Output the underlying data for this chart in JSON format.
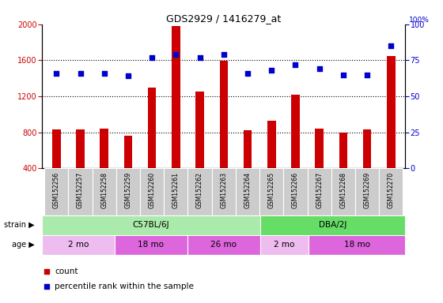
{
  "title": "GDS2929 / 1416279_at",
  "samples": [
    "GSM152256",
    "GSM152257",
    "GSM152258",
    "GSM152259",
    "GSM152260",
    "GSM152261",
    "GSM152262",
    "GSM152263",
    "GSM152264",
    "GSM152265",
    "GSM152266",
    "GSM152267",
    "GSM152268",
    "GSM152269",
    "GSM152270"
  ],
  "counts": [
    830,
    830,
    840,
    760,
    1300,
    1980,
    1250,
    1590,
    820,
    930,
    1220,
    840,
    800,
    830,
    1650
  ],
  "percentile_ranks": [
    66,
    66,
    66,
    64,
    77,
    79,
    77,
    79,
    66,
    68,
    72,
    69,
    65,
    65,
    85
  ],
  "ylim_left": [
    400,
    2000
  ],
  "ylim_right": [
    0,
    100
  ],
  "yticks_left": [
    400,
    800,
    1200,
    1600,
    2000
  ],
  "yticks_right": [
    0,
    25,
    50,
    75,
    100
  ],
  "bar_color": "#cc0000",
  "dot_color": "#0000cc",
  "grid_color": "#000000",
  "bar_width": 0.35,
  "strain_row": [
    {
      "label": "C57BL/6J",
      "start": 0,
      "end": 8,
      "color": "#aaeaaa"
    },
    {
      "label": "DBA/2J",
      "start": 9,
      "end": 14,
      "color": "#66dd66"
    }
  ],
  "age_row": [
    {
      "label": "2 mo",
      "start": 0,
      "end": 2,
      "color": "#eebcee"
    },
    {
      "label": "18 mo",
      "start": 3,
      "end": 5,
      "color": "#dd66dd"
    },
    {
      "label": "26 mo",
      "start": 6,
      "end": 8,
      "color": "#dd66dd"
    },
    {
      "label": "2 mo",
      "start": 9,
      "end": 10,
      "color": "#eebcee"
    },
    {
      "label": "18 mo",
      "start": 11,
      "end": 14,
      "color": "#dd66dd"
    }
  ],
  "legend_count_color": "#cc0000",
  "legend_pct_color": "#0000cc",
  "bg_color": "#ffffff",
  "axes_bg": "#ffffff",
  "xlabel_area_bg": "#cccccc"
}
